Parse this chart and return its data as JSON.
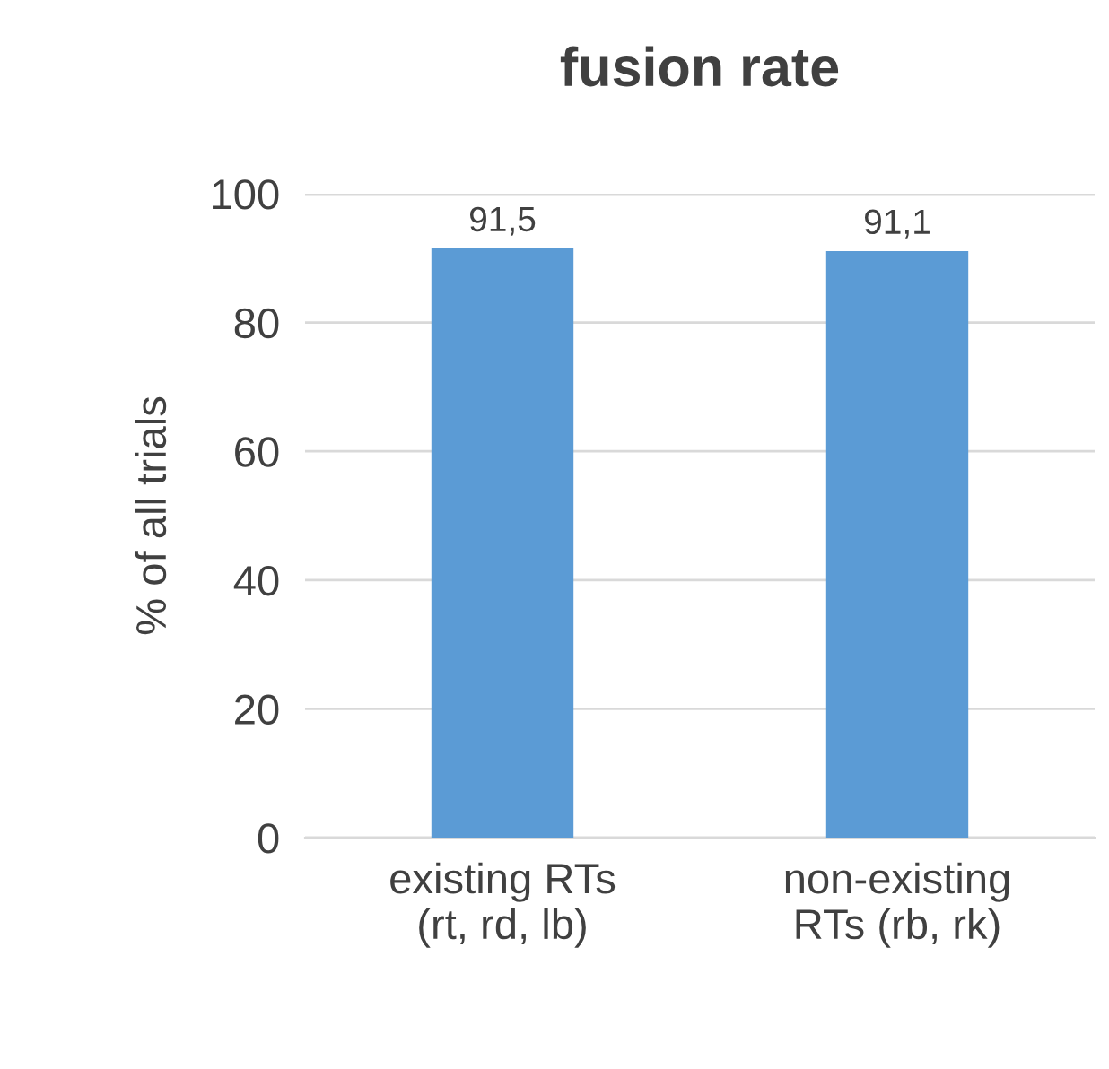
{
  "chart_data": {
    "type": "bar",
    "title": "fusion rate",
    "ylabel": "% of all trials",
    "categories": [
      "existing RTs\n(rt, rd, lb)",
      "non-existing\nRTs (rb, rk)"
    ],
    "values": [
      91.5,
      91.1
    ],
    "value_labels": [
      "91,5",
      "91,1"
    ],
    "color": "#5b9bd5",
    "ylim": [
      0,
      100
    ],
    "yticks": [
      0,
      20,
      40,
      60,
      80,
      100
    ],
    "grid": "y",
    "legend": false
  }
}
